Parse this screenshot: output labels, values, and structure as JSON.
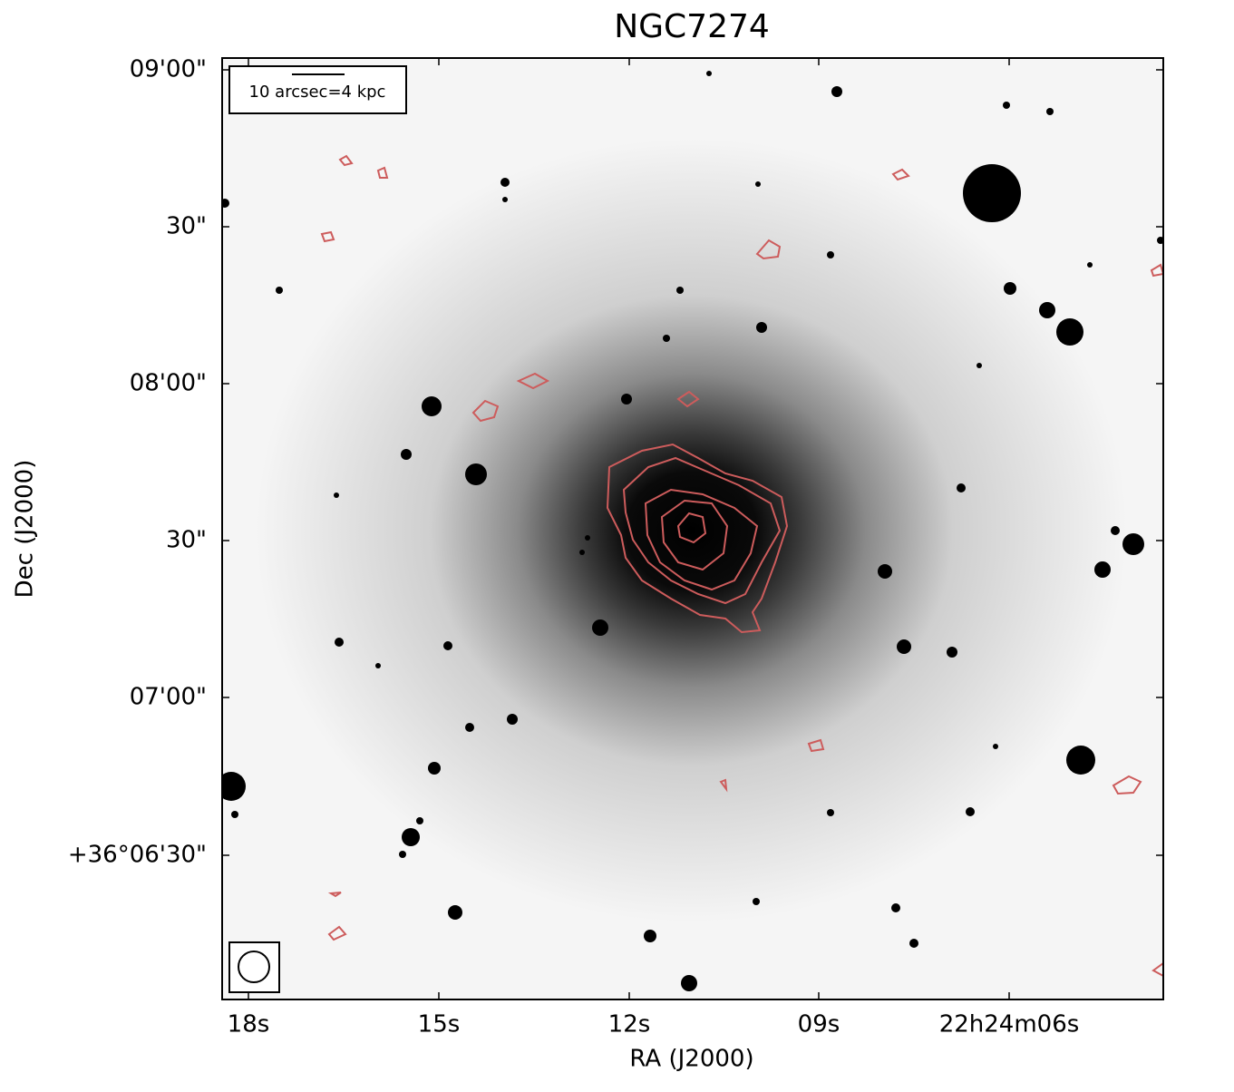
{
  "chart_data": {
    "type": "image",
    "title": "NGC7274",
    "xlabel": "RA (J2000)",
    "ylabel": "Dec (J2000)",
    "x_tick_labels": [
      "18s",
      "15s",
      "12s",
      "09s",
      "22h24m06s"
    ],
    "y_tick_labels": [
      "09'00\"",
      "30\"",
      "08'00\"",
      "30\"",
      "07'00\"",
      "+36°06'30\""
    ],
    "scale_bar": "10 arcsec=4 kpc",
    "contour_color": "#cd5c5c"
  }
}
